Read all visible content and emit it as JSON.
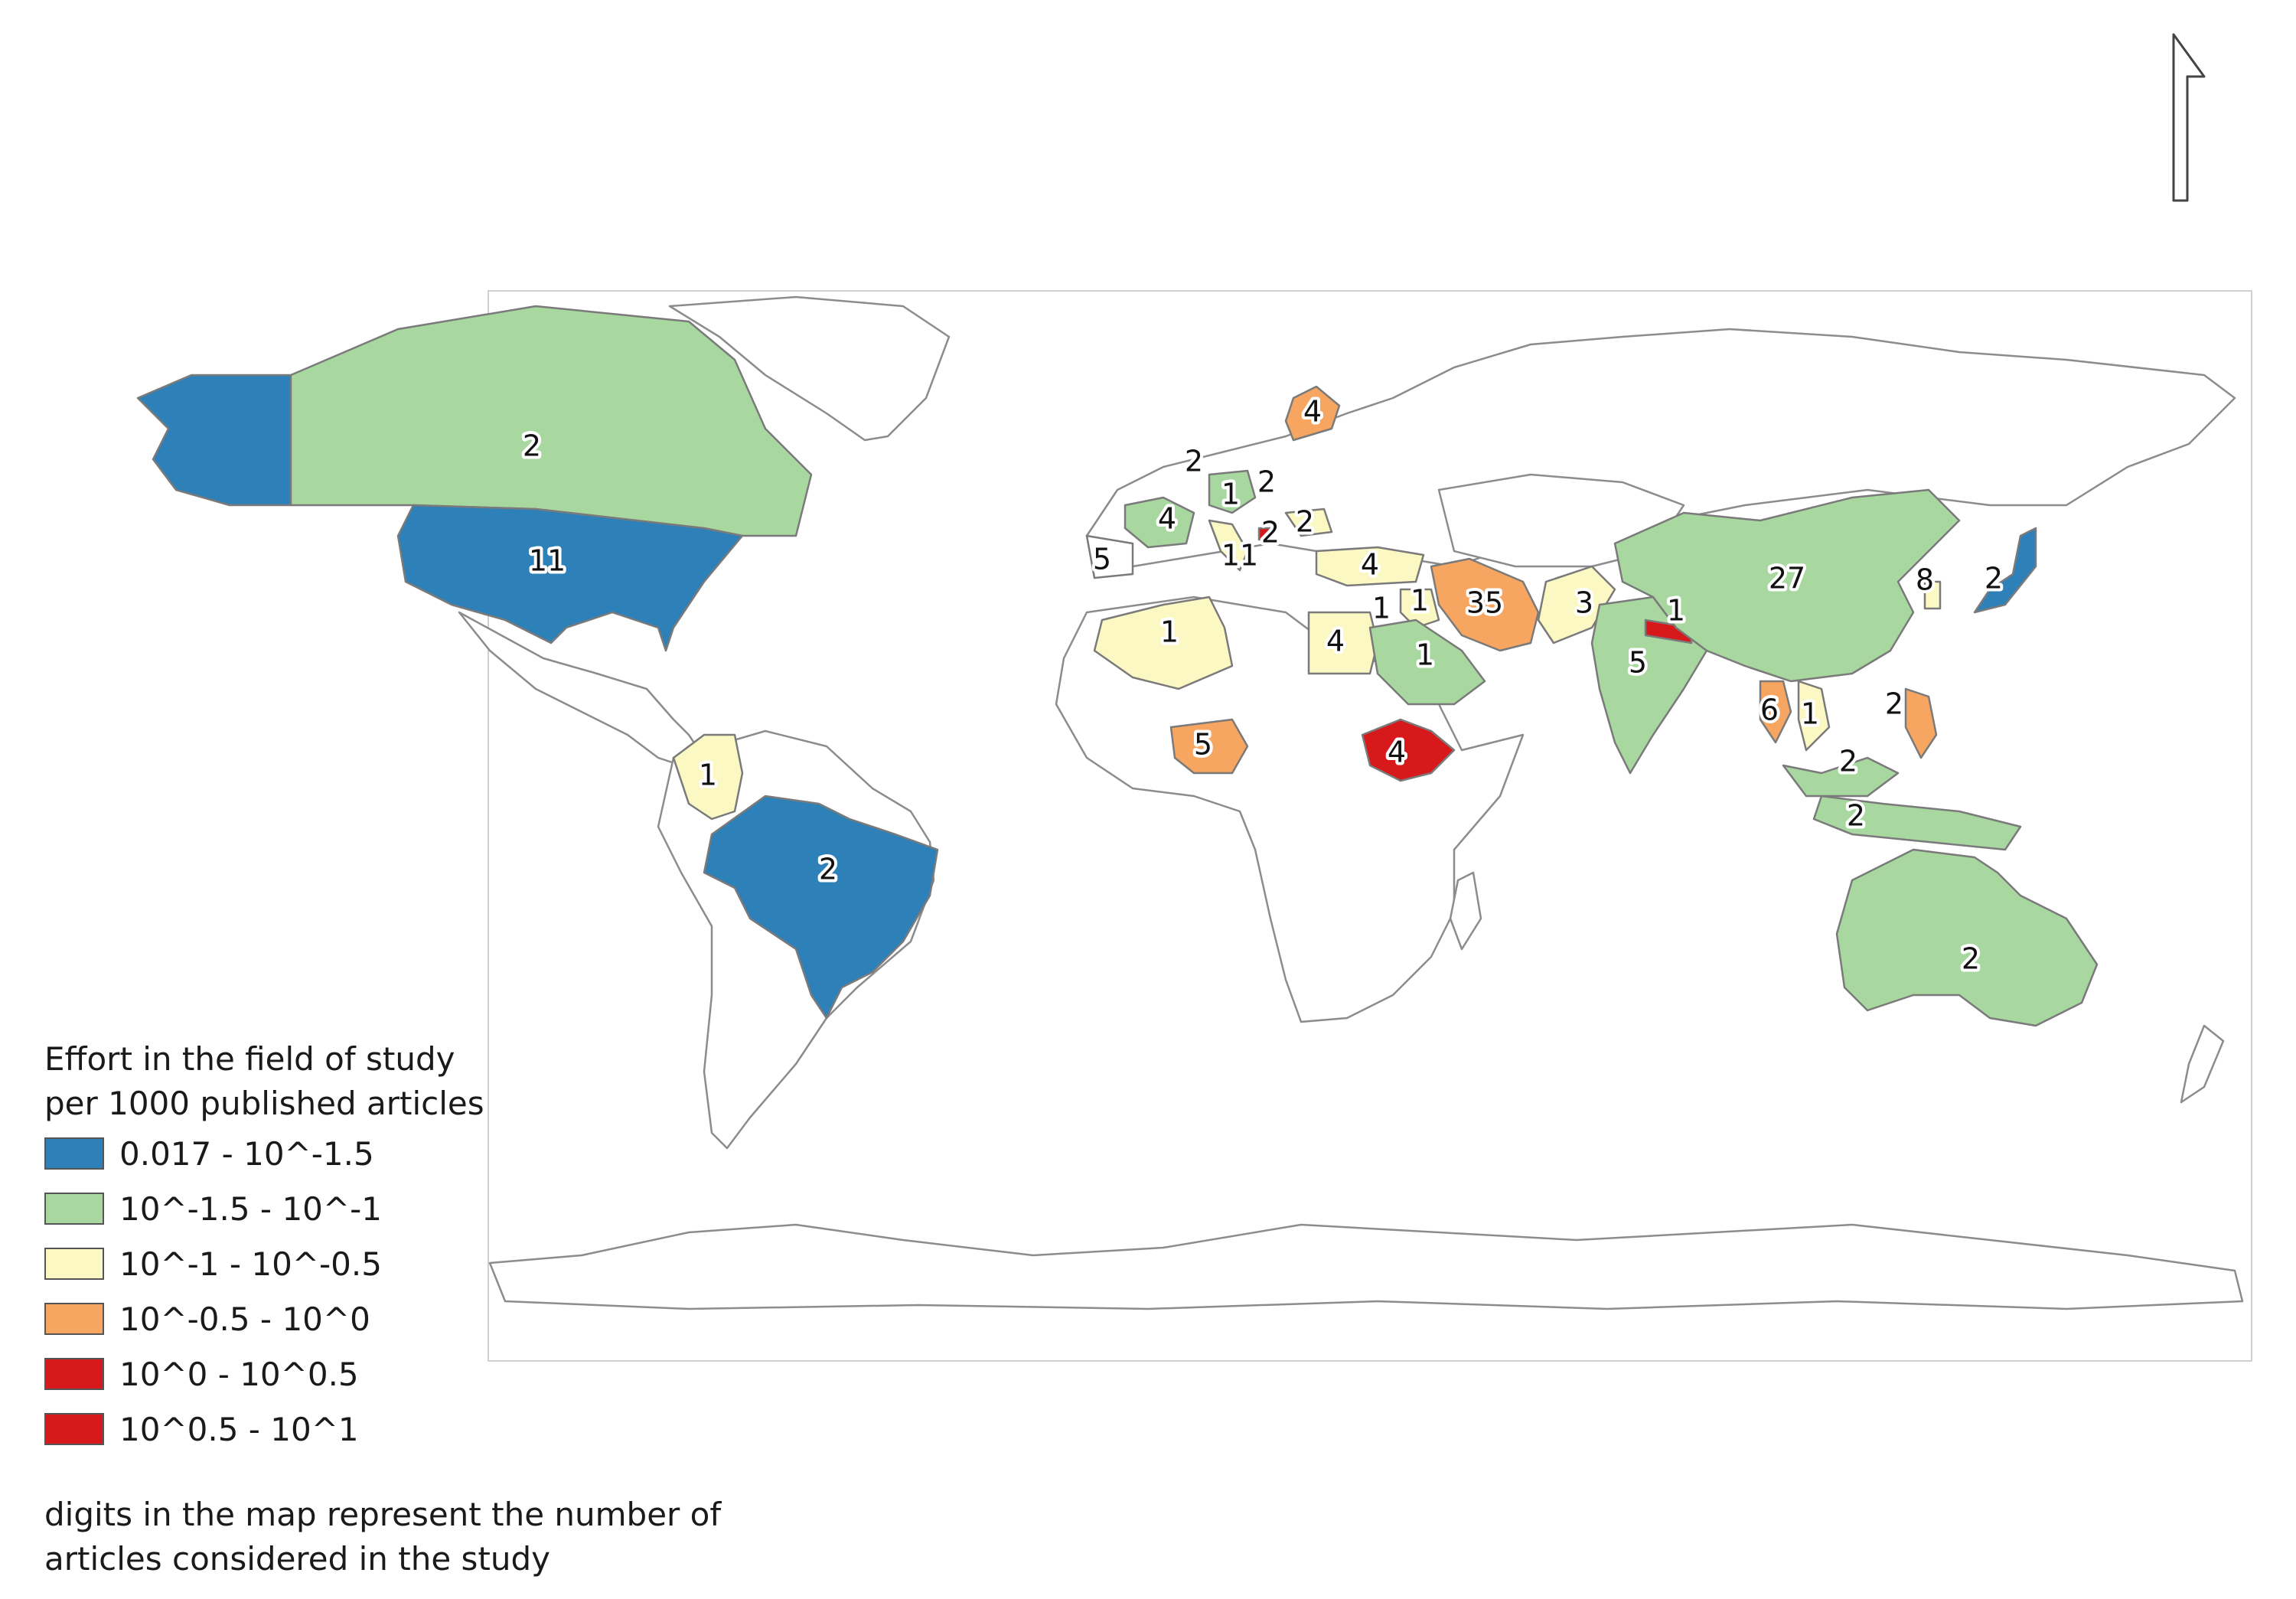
{
  "legend": {
    "title_line1": "Effort in the field of study",
    "title_line2": "per 1000 published articles",
    "classes": [
      {
        "label": "0.017 - 10^-1.5",
        "color": "#2e80b8"
      },
      {
        "label": "10^-1.5 - 10^-1",
        "color": "#a8d8a0"
      },
      {
        "label": "10^-1 - 10^-0.5",
        "color": "#fbf8c4"
      },
      {
        "label": "10^-0.5 - 10^0",
        "color": "#f7a662"
      },
      {
        "label": "10^0 - 10^0.5",
        "color": "#d7191c"
      },
      {
        "label": "10^0.5 - 10^1",
        "color": "#d7191c"
      }
    ]
  },
  "note_line1": "digits in the map represent the number of",
  "note_line2": "articles considered in the study",
  "north_arrow_icon": "north-arrow-icon",
  "map_labels": [
    "4",
    "2",
    "2",
    "1",
    "2",
    "2",
    "4",
    "2",
    "11",
    "11",
    "5",
    "4",
    "1",
    "1",
    "35",
    "3",
    "1",
    "27",
    "8",
    "2",
    "1",
    "4",
    "1",
    "5",
    "5",
    "4",
    "6",
    "1",
    "2",
    "2",
    "2",
    "1",
    "2",
    "2"
  ]
}
